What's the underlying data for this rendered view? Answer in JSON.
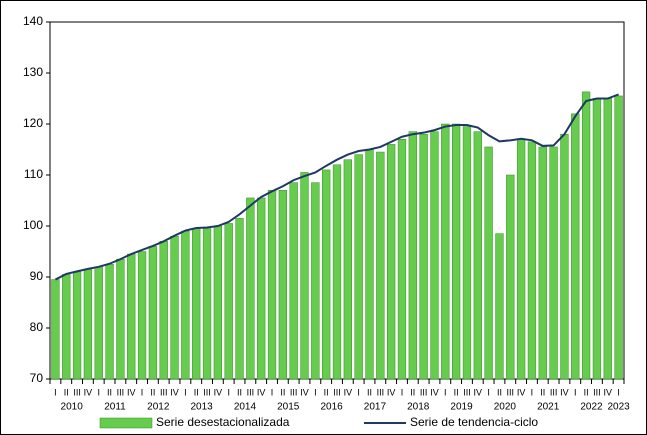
{
  "chart_data": {
    "type": "bar",
    "categories": [
      "I",
      "II",
      "III",
      "IV",
      "I",
      "II",
      "III",
      "IV",
      "I",
      "II",
      "III",
      "IV",
      "I",
      "II",
      "III",
      "IV",
      "I",
      "II",
      "III",
      "IV",
      "I",
      "II",
      "III",
      "IV",
      "I",
      "II",
      "III",
      "IV",
      "I",
      "II",
      "III",
      "IV",
      "I",
      "II",
      "III",
      "IV",
      "I",
      "II",
      "III",
      "IV",
      "I",
      "II",
      "III",
      "IV",
      "I",
      "II",
      "III",
      "IV",
      "I",
      "II",
      "III",
      "IV",
      "I"
    ],
    "years": [
      "2010",
      "2011",
      "2012",
      "2013",
      "2014",
      "2015",
      "2016",
      "2017",
      "2018",
      "2019",
      "2020",
      "2021",
      "2022",
      "2023"
    ],
    "series": [
      {
        "name": "Serie desestacionalizada",
        "type": "bar",
        "color": "#66cc4d",
        "values": [
          89.5,
          90.5,
          91,
          91.5,
          92,
          92.5,
          93.5,
          94.5,
          95,
          96,
          97,
          98,
          99,
          99.5,
          99.5,
          100,
          100.5,
          101.5,
          105.5,
          105.5,
          107,
          107,
          108.5,
          110.5,
          108.5,
          111,
          112,
          113,
          114,
          115,
          114.5,
          116,
          117,
          118.5,
          118,
          118.5,
          120,
          120,
          119.5,
          118.5,
          115.5,
          98.5,
          110,
          117,
          116.5,
          115.5,
          115.5,
          118,
          122,
          126.3,
          125,
          125,
          125.5
        ]
      },
      {
        "name": "Serie de tendencia-ciclo",
        "type": "line",
        "color": "#1f3864",
        "values": [
          89.5,
          90.6,
          91.1,
          91.6,
          92,
          92.6,
          93.5,
          94.5,
          95.3,
          96.1,
          97,
          98.1,
          99.1,
          99.6,
          99.7,
          100,
          100.8,
          102.3,
          104,
          105.7,
          106.8,
          107.8,
          109,
          109.8,
          110.5,
          111.8,
          113,
          114,
          114.7,
          115,
          115.5,
          116.5,
          117.5,
          118,
          118.3,
          118.8,
          119.5,
          119.8,
          119.8,
          119.3,
          117.8,
          116.6,
          116.8,
          117.1,
          116.8,
          115.7,
          115.8,
          118,
          121.5,
          124.5,
          125,
          125,
          125.8
        ]
      }
    ],
    "ylim": [
      70,
      140
    ],
    "yticks": [
      70,
      80,
      90,
      100,
      110,
      120,
      130,
      140
    ]
  }
}
